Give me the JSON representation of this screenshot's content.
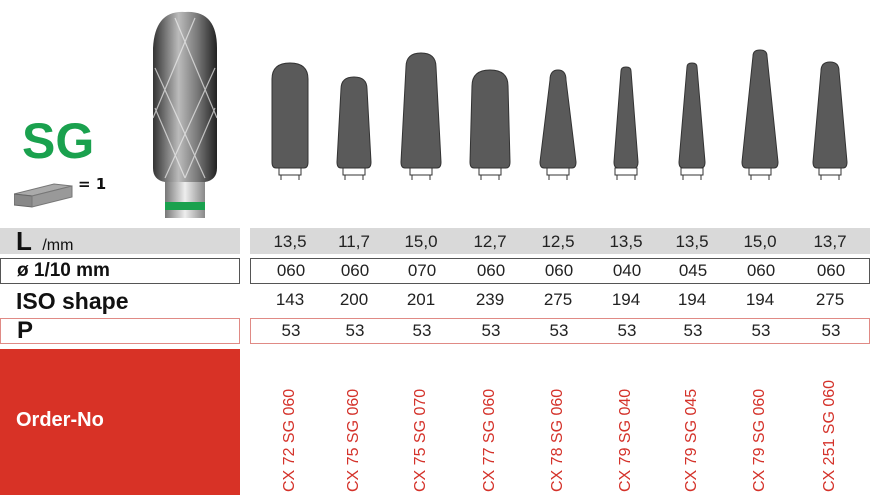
{
  "series_code": "SG",
  "pack_quantity": "= 1",
  "colors": {
    "accent_green": "#1aa14e",
    "order_red": "#d83226",
    "bur_head": "#5a5a5a",
    "row_gray": "#d9d9d9"
  },
  "rows": {
    "length": {
      "label_main": "L",
      "label_unit": "/mm",
      "values": [
        "13,5",
        "11,7",
        "15,0",
        "12,7",
        "12,5",
        "13,5",
        "13,5",
        "15,0",
        "13,7"
      ]
    },
    "diameter": {
      "label": "ø 1/10 mm",
      "values": [
        "060",
        "060",
        "070",
        "060",
        "060",
        "040",
        "045",
        "060",
        "060"
      ]
    },
    "iso_shape": {
      "label": "ISO shape",
      "values": [
        "143",
        "200",
        "201",
        "239",
        "275",
        "194",
        "194",
        "194",
        "275"
      ]
    },
    "p": {
      "label": "P",
      "values": [
        "53",
        "53",
        "53",
        "53",
        "53",
        "53",
        "53",
        "53",
        "53"
      ]
    },
    "order_no": {
      "label": "Order-No",
      "values": [
        "CX 72 SG 060",
        "CX 75 SG 060",
        "CX 75 SG 070",
        "CX 77 SG 060",
        "CX 78 SG 060",
        "CX 79 SG 040",
        "CX 79 SG 045",
        "CX 79 SG 060",
        "CX 251 SG 060"
      ]
    }
  }
}
